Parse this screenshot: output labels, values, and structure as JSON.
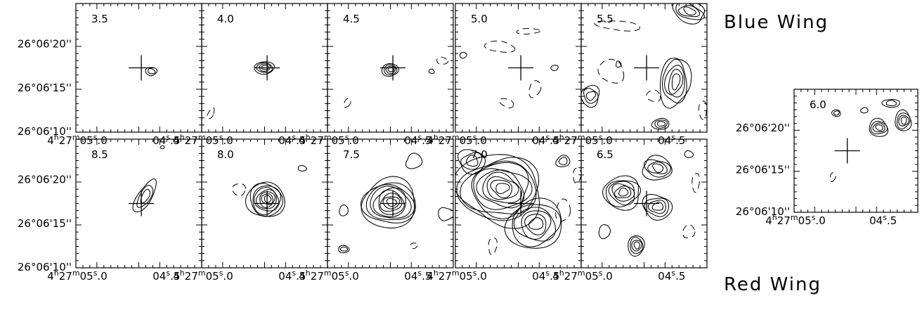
{
  "figure": {
    "blue_wing_label": "Blue Wing",
    "red_wing_label": "Red Wing",
    "dec_tick_labels": [
      "26°06'20''",
      "26°06'15''",
      "26°06'10''"
    ],
    "ra_tick_labels": [
      {
        "main": "4",
        "sup_h": "h",
        "mid": "27",
        "sup_m": "m",
        "rest": "05",
        "sup_s": "s",
        "frac": ".0"
      },
      {
        "main": "",
        "sup_h": "",
        "mid": "",
        "sup_m": "",
        "rest": "04",
        "sup_s": "s",
        "frac": ".5"
      }
    ],
    "colors": {
      "ink": "#000000",
      "background": "#ffffff"
    }
  },
  "panels": {
    "blue": [
      {
        "velocity": "3.5"
      },
      {
        "velocity": "4.0"
      },
      {
        "velocity": "4.5"
      },
      {
        "velocity": "5.0"
      },
      {
        "velocity": "5.5"
      }
    ],
    "red": [
      {
        "velocity": "8.5"
      },
      {
        "velocity": "8.0"
      },
      {
        "velocity": "7.5"
      },
      {
        "velocity": "7.0"
      },
      {
        "velocity": "6.5"
      }
    ],
    "middle": {
      "velocity": "6.0"
    }
  }
}
